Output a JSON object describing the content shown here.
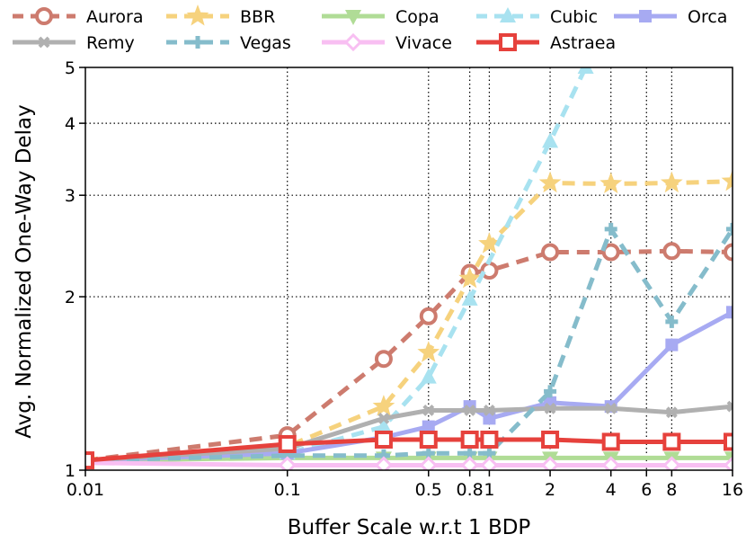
{
  "chart_data": {
    "type": "line",
    "title": "",
    "xlabel": "Buffer Scale w.r.t 1 BDP",
    "ylabel": "Avg. Normalized One-Way Delay",
    "xscale": "log",
    "yscale": "log",
    "xlim": [
      0.01,
      16
    ],
    "ylim": [
      1,
      5
    ],
    "grid": true,
    "legend_position": "top",
    "x_ticks": [
      {
        "value": 0.01,
        "label": "0.01"
      },
      {
        "value": 0.1,
        "label": "0.1"
      },
      {
        "value": 0.5,
        "label": "0.5"
      },
      {
        "value": 0.8,
        "label": "0.8"
      },
      {
        "value": 1,
        "label": "1"
      },
      {
        "value": 2,
        "label": "2"
      },
      {
        "value": 4,
        "label": "4"
      },
      {
        "value": 6,
        "label": "6"
      },
      {
        "value": 8,
        "label": "8"
      },
      {
        "value": 16,
        "label": "16"
      }
    ],
    "y_ticks": [
      {
        "value": 1,
        "label": "1"
      },
      {
        "value": 2,
        "label": "2"
      },
      {
        "value": 3,
        "label": "3"
      },
      {
        "value": 4,
        "label": "4"
      },
      {
        "value": 5,
        "label": "5"
      }
    ],
    "series": [
      {
        "name": "Aurora",
        "color": "#cd7b6e",
        "dash": "dashed",
        "marker": "circle-open",
        "x": [
          0.01,
          0.1,
          0.3,
          0.5,
          0.8,
          1,
          2,
          4,
          8,
          16
        ],
        "y": [
          1.04,
          1.15,
          1.56,
          1.85,
          2.2,
          2.22,
          2.39,
          2.39,
          2.4,
          2.39
        ]
      },
      {
        "name": "BBR",
        "color": "#f6d27d",
        "dash": "dashed",
        "marker": "star",
        "x": [
          0.01,
          0.1,
          0.3,
          0.5,
          0.8,
          1,
          2,
          4,
          8,
          16
        ],
        "y": [
          1.04,
          1.1,
          1.29,
          1.6,
          2.15,
          2.47,
          3.15,
          3.14,
          3.15,
          3.17
        ]
      },
      {
        "name": "Copa",
        "color": "#b0dc96",
        "dash": "solid",
        "marker": "triangle-down",
        "x": [
          0.01,
          0.1,
          0.3,
          0.5,
          0.8,
          1,
          2,
          4,
          8,
          16
        ],
        "y": [
          1.04,
          1.05,
          1.05,
          1.05,
          1.05,
          1.05,
          1.05,
          1.05,
          1.05,
          1.05
        ]
      },
      {
        "name": "Cubic",
        "color": "#a8e2f0",
        "dash": "dashed",
        "marker": "triangle-up",
        "x": [
          0.01,
          0.1,
          0.3,
          0.5,
          0.8,
          2,
          3
        ],
        "y": [
          1.04,
          1.07,
          1.19,
          1.45,
          1.98,
          3.72,
          5.0
        ]
      },
      {
        "name": "Orca",
        "color": "#a7aaf2",
        "dash": "solid",
        "marker": "square",
        "x": [
          0.01,
          0.1,
          0.3,
          0.5,
          0.8,
          1,
          2,
          4,
          8,
          16
        ],
        "y": [
          1.04,
          1.07,
          1.14,
          1.19,
          1.29,
          1.23,
          1.31,
          1.29,
          1.65,
          1.88
        ]
      },
      {
        "name": "Remy",
        "color": "#b0b0b0",
        "dash": "solid",
        "marker": "x",
        "x": [
          0.01,
          0.1,
          0.3,
          0.5,
          0.8,
          1,
          2,
          4,
          8,
          16
        ],
        "y": [
          1.04,
          1.09,
          1.23,
          1.27,
          1.27,
          1.27,
          1.28,
          1.28,
          1.26,
          1.29
        ]
      },
      {
        "name": "Vegas",
        "color": "#85bccb",
        "dash": "dashed",
        "marker": "plus",
        "x": [
          0.01,
          0.1,
          0.3,
          0.5,
          0.8,
          1,
          2,
          4,
          8,
          16
        ],
        "y": [
          1.04,
          1.06,
          1.06,
          1.07,
          1.07,
          1.07,
          1.37,
          2.62,
          1.81,
          2.62
        ]
      },
      {
        "name": "Vivace",
        "color": "#f8bff2",
        "dash": "solid",
        "marker": "diamond-open",
        "x": [
          0.01,
          0.1,
          0.3,
          0.5,
          0.8,
          1,
          2,
          4,
          8,
          16
        ],
        "y": [
          1.03,
          1.02,
          1.02,
          1.02,
          1.02,
          1.02,
          1.02,
          1.02,
          1.02,
          1.02
        ]
      },
      {
        "name": "Astraea",
        "color": "#e6413c",
        "dash": "solid",
        "marker": "square-open",
        "x": [
          0.01,
          0.1,
          0.3,
          0.5,
          0.8,
          1,
          2,
          4,
          8,
          16
        ],
        "y": [
          1.04,
          1.11,
          1.13,
          1.13,
          1.13,
          1.13,
          1.13,
          1.12,
          1.12,
          1.12
        ]
      }
    ]
  }
}
